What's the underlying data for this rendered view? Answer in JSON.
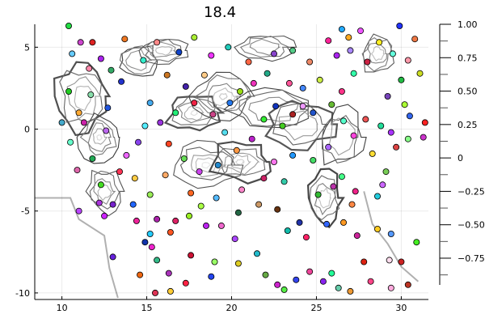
{
  "chart_data": {
    "type": "scatter",
    "title": "18.4",
    "xlabel": "",
    "ylabel": "",
    "xlim": [
      8.4,
      31.6
    ],
    "ylim": [
      -10.4,
      6.4
    ],
    "x_ticks": [
      10,
      15,
      20,
      25,
      30
    ],
    "y_ticks": [
      5,
      0,
      -5,
      -10
    ],
    "grid": true,
    "legend": "none",
    "colorbar": {
      "range": [
        -0.95,
        1.0
      ],
      "ticks": [
        1.0,
        0.75,
        0.5,
        0.25,
        0,
        -0.25,
        -0.5,
        -0.75
      ],
      "tick_labels": [
        "1.00",
        "0.75",
        "0.50",
        "0.25",
        "0",
        "−0.25",
        "−0.50",
        "−0.75"
      ],
      "colors": [
        "#ffffff",
        "#1a1a1a"
      ]
    },
    "background_contour": "grayscale contour lines",
    "points": [
      {
        "x": 10.4,
        "y": 6.3,
        "color": "#22dd44"
      },
      {
        "x": 13.7,
        "y": 5.5,
        "color": "#ee7722"
      },
      {
        "x": 11.1,
        "y": 5.3,
        "color": "#cc44cc"
      },
      {
        "x": 11.8,
        "y": 5.3,
        "color": "#dd2222"
      },
      {
        "x": 10.6,
        "y": 4.6,
        "color": "#66ccff"
      },
      {
        "x": 12.3,
        "y": 4.3,
        "color": "#aa22ee"
      },
      {
        "x": 11.6,
        "y": 3.7,
        "color": "#ff88aa"
      },
      {
        "x": 12.9,
        "y": 3.6,
        "color": "#33aa66"
      },
      {
        "x": 13.5,
        "y": 2.9,
        "color": "#2233cc"
      },
      {
        "x": 10.4,
        "y": 2.3,
        "color": "#22cc22"
      },
      {
        "x": 11.7,
        "y": 2.1,
        "color": "#88ddaa"
      },
      {
        "x": 12.7,
        "y": 1.3,
        "color": "#2255dd"
      },
      {
        "x": 11.0,
        "y": 1.0,
        "color": "#ffaa33"
      },
      {
        "x": 10.0,
        "y": 0.4,
        "color": "#44aacc"
      },
      {
        "x": 11.3,
        "y": 0.4,
        "color": "#cc22aa"
      },
      {
        "x": 12.6,
        "y": -0.1,
        "color": "#bb66ee"
      },
      {
        "x": 10.5,
        "y": -0.8,
        "color": "#66ffcc"
      },
      {
        "x": 11.8,
        "y": -1.8,
        "color": "#22aa55"
      },
      {
        "x": 10.9,
        "y": -2.5,
        "color": "#dd66aa"
      },
      {
        "x": 12.3,
        "y": -3.4,
        "color": "#44dd22"
      },
      {
        "x": 13.8,
        "y": -1.6,
        "color": "#ee66ff"
      },
      {
        "x": 13.4,
        "y": -2.6,
        "color": "#ff3355"
      },
      {
        "x": 14.5,
        "y": -0.8,
        "color": "#8844ee"
      },
      {
        "x": 14.9,
        "y": 0.2,
        "color": "#55eeff"
      },
      {
        "x": 14.3,
        "y": -3.0,
        "color": "#ffcc44"
      },
      {
        "x": 12.2,
        "y": -4.5,
        "color": "#aa33dd"
      },
      {
        "x": 13.0,
        "y": -4.6,
        "color": "#7722cc"
      },
      {
        "x": 14.2,
        "y": -4.6,
        "color": "#2266ff"
      },
      {
        "x": 15.2,
        "y": -4.0,
        "color": "#99ee55"
      },
      {
        "x": 11.0,
        "y": -5.0,
        "color": "#bb44ff"
      },
      {
        "x": 12.5,
        "y": -5.3,
        "color": "#cc22ff"
      },
      {
        "x": 14.4,
        "y": -5.6,
        "color": "#ee2299"
      },
      {
        "x": 15.6,
        "y": -5.5,
        "color": "#aa22aa"
      },
      {
        "x": 16.4,
        "y": -6.3,
        "color": "#ff5522"
      },
      {
        "x": 15.2,
        "y": -6.4,
        "color": "#22ccff"
      },
      {
        "x": 14.9,
        "y": -6.9,
        "color": "#1133aa"
      },
      {
        "x": 15.3,
        "y": -7.2,
        "color": "#ee22cc"
      },
      {
        "x": 15.6,
        "y": -8.0,
        "color": "#33bb88"
      },
      {
        "x": 15.5,
        "y": -10.0,
        "color": "#dd3355"
      },
      {
        "x": 16.4,
        "y": -9.9,
        "color": "#ffcc33"
      },
      {
        "x": 14.6,
        "y": -8.9,
        "color": "#ee6611"
      },
      {
        "x": 16.3,
        "y": -8.8,
        "color": "#aa33bb"
      },
      {
        "x": 17.3,
        "y": -9.4,
        "color": "#ff2244"
      },
      {
        "x": 17.6,
        "y": -7.7,
        "color": "#cc1133"
      },
      {
        "x": 18.8,
        "y": -9.0,
        "color": "#2244ee"
      },
      {
        "x": 19.0,
        "y": -8.1,
        "color": "#99ff66"
      },
      {
        "x": 20.4,
        "y": -8.2,
        "color": "#ddcc22"
      },
      {
        "x": 20.2,
        "y": -6.7,
        "color": "#aa44ff"
      },
      {
        "x": 21.5,
        "y": -7.6,
        "color": "#22bbcc"
      },
      {
        "x": 22.0,
        "y": -8.9,
        "color": "#66aa44"
      },
      {
        "x": 22.7,
        "y": -9.5,
        "color": "#cc22cc"
      },
      {
        "x": 23.1,
        "y": -9.8,
        "color": "#55ee44"
      },
      {
        "x": 23.8,
        "y": -9.2,
        "color": "#3344ee"
      },
      {
        "x": 24.6,
        "y": -8.7,
        "color": "#ee4499"
      },
      {
        "x": 25.4,
        "y": -9.3,
        "color": "#8822ee"
      },
      {
        "x": 25.9,
        "y": -8.8,
        "color": "#22ff99"
      },
      {
        "x": 26.3,
        "y": -9.7,
        "color": "#66ccaa"
      },
      {
        "x": 27.0,
        "y": -9.9,
        "color": "#ee9933"
      },
      {
        "x": 28.2,
        "y": -9.3,
        "color": "#ff4488"
      },
      {
        "x": 29.4,
        "y": -9.7,
        "color": "#ffaadd"
      },
      {
        "x": 30.4,
        "y": -9.5,
        "color": "#bb3322"
      },
      {
        "x": 27.8,
        "y": -8.1,
        "color": "#dd2211"
      },
      {
        "x": 29.3,
        "y": -8.0,
        "color": "#ffddee"
      },
      {
        "x": 30.0,
        "y": -8.1,
        "color": "#cc2222"
      },
      {
        "x": 30.9,
        "y": -6.9,
        "color": "#44ee22"
      },
      {
        "x": 29.4,
        "y": -6.4,
        "color": "#5599ff"
      },
      {
        "x": 28.6,
        "y": -6.1,
        "color": "#ffcc22"
      },
      {
        "x": 27.4,
        "y": -6.5,
        "color": "#cc2299"
      },
      {
        "x": 26.6,
        "y": -5.7,
        "color": "#ff9922"
      },
      {
        "x": 25.6,
        "y": -5.8,
        "color": "#3366ff"
      },
      {
        "x": 24.0,
        "y": -5.7,
        "color": "#2233aa"
      },
      {
        "x": 24.4,
        "y": -6.6,
        "color": "#ff2266"
      },
      {
        "x": 23.3,
        "y": -6.2,
        "color": "#11bbaa"
      },
      {
        "x": 22.7,
        "y": -4.9,
        "color": "#663311"
      },
      {
        "x": 21.6,
        "y": -4.6,
        "color": "#cc9966"
      },
      {
        "x": 20.4,
        "y": -5.1,
        "color": "#226644"
      },
      {
        "x": 19.4,
        "y": -5.9,
        "color": "#ee66cc"
      },
      {
        "x": 18.5,
        "y": -5.9,
        "color": "#bb22ee"
      },
      {
        "x": 18.2,
        "y": -4.7,
        "color": "#aaff44"
      },
      {
        "x": 17.6,
        "y": -3.9,
        "color": "#ff6622"
      },
      {
        "x": 16.7,
        "y": -5.6,
        "color": "#dd2266"
      },
      {
        "x": 17.5,
        "y": -5.3,
        "color": "#99ee22"
      },
      {
        "x": 19.1,
        "y": -4.2,
        "color": "#55bbff"
      },
      {
        "x": 20.6,
        "y": -3.7,
        "color": "#ff88cc"
      },
      {
        "x": 21.9,
        "y": -3.0,
        "color": "#cc2266"
      },
      {
        "x": 23.1,
        "y": -3.2,
        "color": "#33ccaa"
      },
      {
        "x": 22.5,
        "y": -2.0,
        "color": "#ff77ee"
      },
      {
        "x": 23.6,
        "y": -1.6,
        "color": "#2299ff"
      },
      {
        "x": 24.8,
        "y": -1.9,
        "color": "#44dd66"
      },
      {
        "x": 25.7,
        "y": -1.1,
        "color": "#aa66ff"
      },
      {
        "x": 26.5,
        "y": -2.9,
        "color": "#44ff88"
      },
      {
        "x": 27.3,
        "y": -3.8,
        "color": "#ee2288"
      },
      {
        "x": 27.1,
        "y": -4.6,
        "color": "#ff8844"
      },
      {
        "x": 28.6,
        "y": -4.1,
        "color": "#22ccdd"
      },
      {
        "x": 28.9,
        "y": -3.4,
        "color": "#cc66ff"
      },
      {
        "x": 29.1,
        "y": -2.6,
        "color": "#77cc55"
      },
      {
        "x": 28.3,
        "y": -1.5,
        "color": "#ffdd33"
      },
      {
        "x": 29.7,
        "y": -1.1,
        "color": "#dd4444"
      },
      {
        "x": 30.4,
        "y": -0.6,
        "color": "#88ff88"
      },
      {
        "x": 31.3,
        "y": -0.5,
        "color": "#cc33cc"
      },
      {
        "x": 31.4,
        "y": 0.4,
        "color": "#ff2222"
      },
      {
        "x": 30.5,
        "y": 0.8,
        "color": "#3366ee"
      },
      {
        "x": 29.4,
        "y": -0.2,
        "color": "#aa33ff"
      },
      {
        "x": 28.8,
        "y": 0.2,
        "color": "#22dd99"
      },
      {
        "x": 27.9,
        "y": 0.6,
        "color": "#ee5555"
      },
      {
        "x": 27.2,
        "y": -0.4,
        "color": "#ff44dd"
      },
      {
        "x": 26.6,
        "y": 0.5,
        "color": "#55ffcc"
      },
      {
        "x": 25.9,
        "y": 1.5,
        "color": "#66bb33"
      },
      {
        "x": 24.8,
        "y": 1.0,
        "color": "#2255cc"
      },
      {
        "x": 24.2,
        "y": 1.4,
        "color": "#ee99ff"
      },
      {
        "x": 23.6,
        "y": 0.9,
        "color": "#aa2222"
      },
      {
        "x": 23.0,
        "y": 0.2,
        "color": "#44cc22"
      },
      {
        "x": 22.6,
        "y": 1.4,
        "color": "#1133bb"
      },
      {
        "x": 21.9,
        "y": 0.6,
        "color": "#33ee33"
      },
      {
        "x": 21.2,
        "y": -0.6,
        "color": "#bb22cc"
      },
      {
        "x": 20.3,
        "y": -1.3,
        "color": "#ff9944"
      },
      {
        "x": 19.6,
        "y": -0.2,
        "color": "#55ddee"
      },
      {
        "x": 18.9,
        "y": 0.9,
        "color": "#cc4488"
      },
      {
        "x": 19.9,
        "y": 1.6,
        "color": "#2277ee"
      },
      {
        "x": 20.5,
        "y": 2.3,
        "color": "#99dd11"
      },
      {
        "x": 21.3,
        "y": 2.8,
        "color": "#ee33bb"
      },
      {
        "x": 22.1,
        "y": 3.4,
        "color": "#22aa88"
      },
      {
        "x": 23.4,
        "y": 2.8,
        "color": "#ff5599"
      },
      {
        "x": 24.2,
        "y": 2.5,
        "color": "#4488ff"
      },
      {
        "x": 25.2,
        "y": 3.0,
        "color": "#ccee44"
      },
      {
        "x": 26.5,
        "y": 2.3,
        "color": "#ff3388"
      },
      {
        "x": 27.2,
        "y": 3.4,
        "color": "#33ffaa"
      },
      {
        "x": 28.0,
        "y": 4.1,
        "color": "#cc2244"
      },
      {
        "x": 27.0,
        "y": 4.8,
        "color": "#aa88ff"
      },
      {
        "x": 28.7,
        "y": 5.3,
        "color": "#ffee22"
      },
      {
        "x": 29.5,
        "y": 4.6,
        "color": "#66ffdd"
      },
      {
        "x": 30.4,
        "y": 4.2,
        "color": "#ff99aa"
      },
      {
        "x": 30.8,
        "y": 5.5,
        "color": "#ee7744"
      },
      {
        "x": 31.1,
        "y": 3.4,
        "color": "#ccdd22"
      },
      {
        "x": 30.0,
        "y": 3.0,
        "color": "#22bb44"
      },
      {
        "x": 29.2,
        "y": 2.0,
        "color": "#7744bb"
      },
      {
        "x": 30.2,
        "y": 1.5,
        "color": "#aaff33"
      },
      {
        "x": 29.9,
        "y": 6.3,
        "color": "#2233ff"
      },
      {
        "x": 27.6,
        "y": 6.0,
        "color": "#ee55ff"
      },
      {
        "x": 26.5,
        "y": 6.1,
        "color": "#22aaff"
      },
      {
        "x": 25.7,
        "y": 5.4,
        "color": "#ff2299"
      },
      {
        "x": 26.2,
        "y": 4.5,
        "color": "#aa22ee"
      },
      {
        "x": 26.9,
        "y": 5.6,
        "color": "#ffaa22"
      },
      {
        "x": 24.6,
        "y": 4.1,
        "color": "#ee8866"
      },
      {
        "x": 23.6,
        "y": 4.8,
        "color": "#55cc88"
      },
      {
        "x": 22.5,
        "y": 4.6,
        "color": "#8844cc"
      },
      {
        "x": 21.0,
        "y": 4.1,
        "color": "#ff6644"
      },
      {
        "x": 19.8,
        "y": 5.0,
        "color": "#22ccbb"
      },
      {
        "x": 18.8,
        "y": 4.5,
        "color": "#ee33ff"
      },
      {
        "x": 17.8,
        "y": 5.6,
        "color": "#aaee33"
      },
      {
        "x": 16.9,
        "y": 4.7,
        "color": "#1144cc"
      },
      {
        "x": 15.6,
        "y": 5.3,
        "color": "#ff8888"
      },
      {
        "x": 14.8,
        "y": 4.2,
        "color": "#33eecc"
      },
      {
        "x": 16.2,
        "y": 3.3,
        "color": "#cc7722"
      },
      {
        "x": 17.3,
        "y": 2.6,
        "color": "#4422aa"
      },
      {
        "x": 18.4,
        "y": 3.3,
        "color": "#ffcc88"
      },
      {
        "x": 17.8,
        "y": 1.6,
        "color": "#ee2244"
      },
      {
        "x": 16.7,
        "y": 1.0,
        "color": "#22ee77"
      },
      {
        "x": 15.8,
        "y": 0.4,
        "color": "#9933dd"
      },
      {
        "x": 15.2,
        "y": 1.6,
        "color": "#44aaee"
      },
      {
        "x": 16.3,
        "y": -0.9,
        "color": "#ff4422"
      },
      {
        "x": 17.2,
        "y": -1.8,
        "color": "#66dd55"
      },
      {
        "x": 18.1,
        "y": -2.6,
        "color": "#cc44ee"
      },
      {
        "x": 19.2,
        "y": -2.2,
        "color": "#2288cc"
      },
      {
        "x": 16.1,
        "y": -2.8,
        "color": "#ffaa66"
      },
      {
        "x": 25.1,
        "y": -4.0,
        "color": "#33bb33"
      },
      {
        "x": 26.0,
        "y": -3.5,
        "color": "#bb33aa"
      },
      {
        "x": 13.0,
        "y": -7.8,
        "color": "#6622dd"
      }
    ]
  }
}
